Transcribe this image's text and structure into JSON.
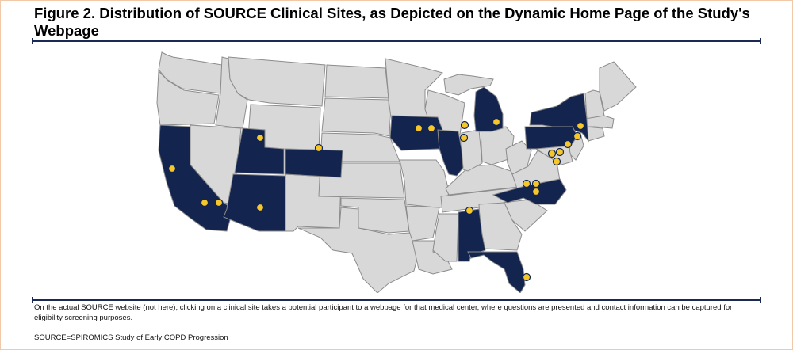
{
  "title": "Figure 2. Distribution of SOURCE Clinical Sites, as Depicted on the Dynamic Home Page of the Study's Webpage",
  "footnote": "On the actual SOURCE website (not here), clicking on a clinical site takes a potential participant to a webpage for that medical center, where questions are presented and contact information can be captured for eligibility screening purposes.",
  "abbreviation": "SOURCE=SPIROMICS Study of Early COPD Progression",
  "colors": {
    "site_state_fill": "#13244f",
    "other_state_fill": "#d8d8d8",
    "state_border": "#8c8c8c",
    "site_marker": "#f6c728",
    "rule": "#1b2a55"
  },
  "map": {
    "region": "Contiguous United States",
    "states_with_sites": [
      "California",
      "Utah",
      "Colorado",
      "Arizona",
      "Iowa",
      "Illinois",
      "Michigan",
      "New York",
      "Pennsylvania",
      "North Carolina",
      "Alabama",
      "Florida"
    ],
    "site_marker_icon": "map-pin-dot-icon"
  }
}
